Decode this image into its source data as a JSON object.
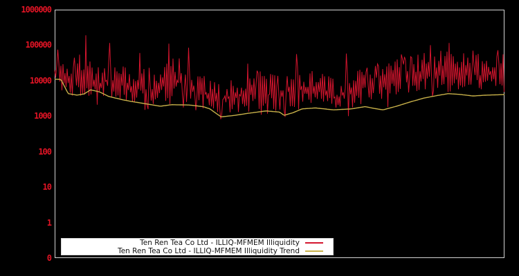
{
  "chart_data": {
    "type": "line",
    "title": "",
    "background": "#000000",
    "plot_border_color": "#d6d6d6",
    "y_axis": {
      "scale": "log",
      "tick_labels": [
        "1000000",
        "100000",
        "10000",
        "1000",
        "100",
        "10",
        "1",
        "0"
      ],
      "tick_values": [
        1000000,
        100000,
        10000,
        1000,
        100,
        10,
        1,
        0
      ],
      "color": "#e31425",
      "ylim_top": 1000000,
      "ylim_bottom": 0,
      "grid": false
    },
    "x_axis": {
      "tick_labels": []
    },
    "legend": {
      "position": "bottom-left",
      "background": "#ffffff",
      "text_color": "#111111"
    },
    "series": [
      {
        "name": "Ten Ren Tea Co Ltd - ILLIQ-MFMEM Illiquidity",
        "color": "#d4152e",
        "style": "noisy-line",
        "approx_range": [
          800,
          190000
        ],
        "envelope": [
          [
            0.0,
            4000,
            60000
          ],
          [
            0.03,
            3000,
            45000
          ],
          [
            0.06,
            2800,
            60000
          ],
          [
            0.09,
            2100,
            35000
          ],
          [
            0.12,
            2500,
            50000
          ],
          [
            0.15,
            2200,
            30000
          ],
          [
            0.18,
            1800,
            28000
          ],
          [
            0.22,
            1400,
            22000
          ],
          [
            0.26,
            1600,
            45000
          ],
          [
            0.3,
            1700,
            50000
          ],
          [
            0.33,
            1100,
            18000
          ],
          [
            0.36,
            900,
            9000
          ],
          [
            0.4,
            1000,
            14000
          ],
          [
            0.45,
            1100,
            20000
          ],
          [
            0.5,
            1100,
            15000
          ],
          [
            0.54,
            1400,
            30000
          ],
          [
            0.58,
            1700,
            20000
          ],
          [
            0.62,
            1000,
            12000
          ],
          [
            0.66,
            1300,
            18000
          ],
          [
            0.7,
            1900,
            28000
          ],
          [
            0.74,
            2300,
            35000
          ],
          [
            0.78,
            2800,
            50000
          ],
          [
            0.82,
            3200,
            60000
          ],
          [
            0.86,
            3500,
            70000
          ],
          [
            0.9,
            3800,
            60000
          ],
          [
            0.94,
            3800,
            65000
          ],
          [
            1.0,
            4200,
            55000
          ]
        ],
        "spikes": [
          [
            0.006,
            75000
          ],
          [
            0.069,
            190000
          ],
          [
            0.123,
            115000
          ],
          [
            0.19,
            60000
          ],
          [
            0.254,
            110000
          ],
          [
            0.298,
            85000
          ],
          [
            0.43,
            30000
          ],
          [
            0.537,
            56000
          ],
          [
            0.648,
            58000
          ],
          [
            0.77,
            55000
          ],
          [
            0.835,
            100000
          ],
          [
            0.878,
            115000
          ],
          [
            0.93,
            70000
          ],
          [
            0.985,
            72000
          ]
        ],
        "dips": [
          [
            0.095,
            2100
          ],
          [
            0.2,
            1500
          ],
          [
            0.37,
            820
          ],
          [
            0.46,
            1100
          ],
          [
            0.512,
            950
          ],
          [
            0.652,
            1000
          ],
          [
            0.74,
            1800
          ],
          [
            1.0,
            4800
          ]
        ]
      },
      {
        "name": "Ten Ren Tea Co Ltd - ILLIQ-MFMEM Illiquidity Trend",
        "color": "#c9b24a",
        "style": "smooth-line",
        "points": [
          [
            0.0,
            11000
          ],
          [
            0.014,
            10800
          ],
          [
            0.03,
            4300
          ],
          [
            0.05,
            3900
          ],
          [
            0.065,
            4200
          ],
          [
            0.08,
            5500
          ],
          [
            0.1,
            4800
          ],
          [
            0.12,
            3600
          ],
          [
            0.15,
            2900
          ],
          [
            0.17,
            2600
          ],
          [
            0.2,
            2250
          ],
          [
            0.235,
            1900
          ],
          [
            0.26,
            2100
          ],
          [
            0.3,
            2050
          ],
          [
            0.33,
            1850
          ],
          [
            0.345,
            1600
          ],
          [
            0.37,
            950
          ],
          [
            0.4,
            1050
          ],
          [
            0.43,
            1200
          ],
          [
            0.47,
            1400
          ],
          [
            0.5,
            1300
          ],
          [
            0.51,
            1050
          ],
          [
            0.53,
            1250
          ],
          [
            0.55,
            1600
          ],
          [
            0.58,
            1700
          ],
          [
            0.62,
            1500
          ],
          [
            0.66,
            1600
          ],
          [
            0.69,
            1850
          ],
          [
            0.71,
            1650
          ],
          [
            0.73,
            1500
          ],
          [
            0.76,
            1900
          ],
          [
            0.79,
            2500
          ],
          [
            0.82,
            3200
          ],
          [
            0.85,
            3800
          ],
          [
            0.875,
            4300
          ],
          [
            0.9,
            4100
          ],
          [
            0.93,
            3700
          ],
          [
            0.96,
            3900
          ],
          [
            1.0,
            4050
          ]
        ]
      }
    ]
  }
}
